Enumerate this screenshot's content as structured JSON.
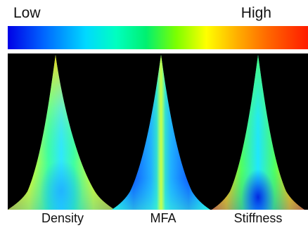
{
  "scale": {
    "low_label": "Low",
    "high_label": "High"
  },
  "colors": {
    "background": "#000000",
    "scale_low": "#0000e6",
    "scale_high": "#ff1a00"
  },
  "panels": [
    {
      "caption": "Density"
    },
    {
      "caption": "MFA"
    },
    {
      "caption": "Stiffness"
    }
  ]
}
